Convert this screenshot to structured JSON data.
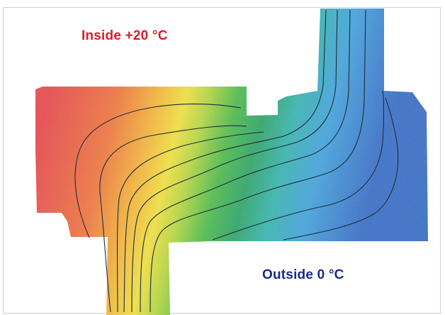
{
  "labels": {
    "inside": "Inside +20 °C",
    "outside": "Outside 0 °C"
  },
  "colors": {
    "inside_text": "#d6202a",
    "outside_text": "#1a2a8a",
    "warm": "#e8474a",
    "cold": "#2f6fc9",
    "isotherm_line": "#1e2e3a"
  },
  "thermal": {
    "inside_temp_c": 20,
    "outside_temp_c": 0,
    "color_scale": [
      "#e8474a",
      "#f07a38",
      "#f5b532",
      "#f2e33a",
      "#b9d93c",
      "#4fbf4a",
      "#1fa86a",
      "#2cb8b0",
      "#3fa7df",
      "#2f6fc9"
    ]
  }
}
